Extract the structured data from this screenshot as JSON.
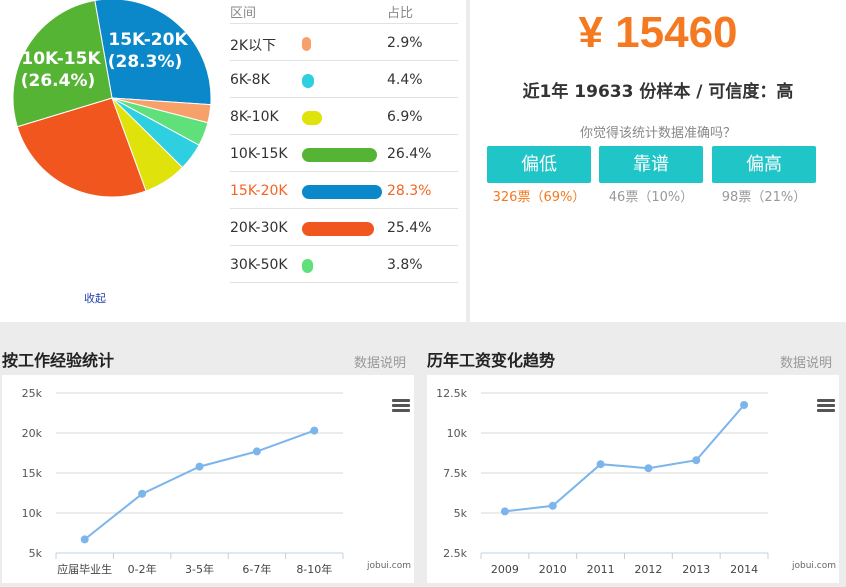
{
  "distribution": {
    "headers": {
      "range": "区间",
      "pct": "占比"
    },
    "rows": [
      {
        "label": "2K以下",
        "pct": "2.9%",
        "value": 2.9,
        "color": "#f8a06a"
      },
      {
        "label": "6K-8K",
        "pct": "4.4%",
        "value": 4.4,
        "color": "#2dcfe0"
      },
      {
        "label": "8K-10K",
        "pct": "6.9%",
        "value": 6.9,
        "color": "#dfe20b"
      },
      {
        "label": "10K-15K",
        "pct": "26.4%",
        "value": 26.4,
        "color": "#55b434"
      },
      {
        "label": "15K-20K",
        "pct": "28.3%",
        "value": 28.3,
        "color": "#0b88c9"
      },
      {
        "label": "20K-30K",
        "pct": "25.4%",
        "value": 25.4,
        "color": "#f0561d"
      },
      {
        "label": "30K-50K",
        "pct": "3.8%",
        "value": 3.8,
        "color": "#5fe07a"
      }
    ],
    "footer": "收起"
  },
  "pie_labels": {
    "a_name": "15K-20K",
    "a_pct": "(28.3%)",
    "b_name": "10K-15K",
    "b_pct": "(26.4%)"
  },
  "summary": {
    "salary": "¥ 15460",
    "sample": "近1年 19633 份样本 / 可信度：高",
    "question": "你觉得该统计数据准确吗？"
  },
  "votes": [
    {
      "label": "偏低",
      "count": "326票（69%）",
      "highlight": true
    },
    {
      "label": "靠谱",
      "count": "46票（10%）",
      "highlight": false
    },
    {
      "label": "偏高",
      "count": "98票（21%）",
      "highlight": false
    }
  ],
  "panels": {
    "experience": {
      "title": "按工作经验统计",
      "link": "数据说明",
      "credit": "jobui.com"
    },
    "trend": {
      "title": "历年工资变化趋势",
      "link": "数据说明",
      "credit": "jobui.com"
    }
  },
  "chart_data": [
    {
      "type": "line",
      "categories": [
        "应届毕业生",
        "0-2年",
        "3-5年",
        "6-7年",
        "8-10年"
      ],
      "values": [
        6700,
        12400,
        15800,
        17700,
        20300
      ],
      "yticks": [
        "5k",
        "10k",
        "15k",
        "20k",
        "25k"
      ],
      "ylim": [
        5000,
        25000
      ],
      "color": "#7cb5ec",
      "grid": true
    },
    {
      "type": "line",
      "categories": [
        "2009",
        "2010",
        "2011",
        "2012",
        "2013",
        "2014"
      ],
      "values": [
        5100,
        5450,
        8050,
        7800,
        8300,
        11750
      ],
      "yticks": [
        "2.5k",
        "5k",
        "7.5k",
        "10k",
        "12.5k"
      ],
      "ylim": [
        2500,
        12500
      ],
      "color": "#7cb5ec",
      "grid": true
    }
  ]
}
